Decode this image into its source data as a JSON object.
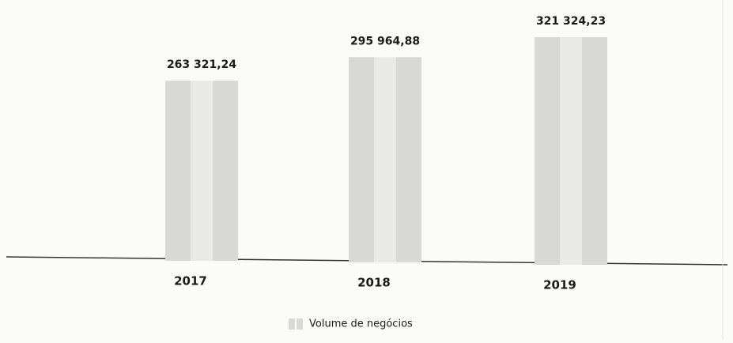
{
  "chart_data": {
    "type": "bar",
    "categories": [
      "2017",
      "2018",
      "2019"
    ],
    "series": [
      {
        "name": "Volume de negócios",
        "color": "#d8d8d6",
        "values": [
          263321.24,
          295964.88,
          321324.23
        ],
        "value_labels": [
          "263 321,24",
          "295 964,88",
          "321 324,23"
        ]
      }
    ]
  }
}
